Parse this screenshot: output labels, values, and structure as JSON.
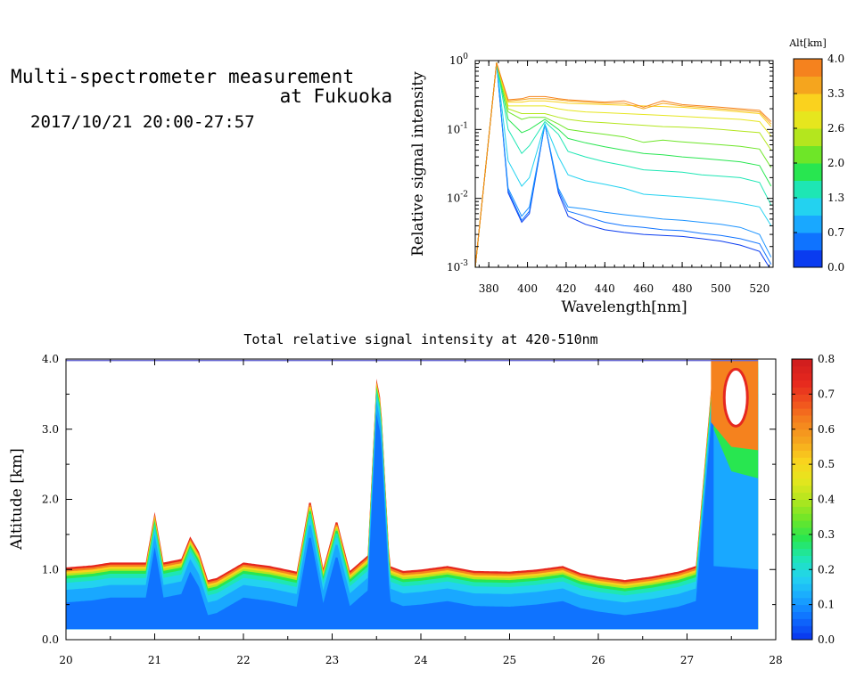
{
  "header": {
    "title_line1": "Multi-spectrometer measurement",
    "title_line2": "at Fukuoka",
    "date_range": "2017/10/21 20:00-27:57"
  },
  "chart_data": [
    {
      "type": "line",
      "xlabel": "Wavelength[nm]",
      "ylabel": "Relative signal intensity",
      "x_ticks": [
        380,
        400,
        420,
        440,
        460,
        480,
        500,
        520
      ],
      "y_scale": "log",
      "y_tick_labels": [
        {
          "base": "10",
          "exp": "0"
        },
        {
          "base": "10",
          "exp": "-1"
        },
        {
          "base": "10",
          "exp": "-2"
        },
        {
          "base": "10",
          "exp": "-3"
        }
      ],
      "xlim": [
        373,
        527
      ],
      "ylim": [
        0.001,
        1
      ],
      "colorbar": {
        "title": "Alt[km]",
        "tick_labels": [
          "4.0",
          "3.3",
          "2.6",
          "2.0",
          "1.3",
          "0.7",
          "0.0"
        ],
        "colors": [
          "#0a3cf0",
          "#0f73ff",
          "#19a8ff",
          "#23d2f0",
          "#1ee6b4",
          "#28e650",
          "#6ee628",
          "#b4e61e",
          "#e6e61e",
          "#fad21e",
          "#f5a51e",
          "#f5821e"
        ]
      },
      "x": [
        373,
        384,
        390,
        397,
        401,
        409,
        416,
        421,
        430,
        440,
        450,
        460,
        470,
        480,
        490,
        500,
        510,
        520,
        526
      ],
      "series": [
        {
          "color": "#0a3cf0",
          "values": [
            0.001,
            0.93,
            0.012,
            0.0045,
            0.006,
            0.12,
            0.012,
            0.0055,
            0.0042,
            0.0035,
            0.0032,
            0.003,
            0.0029,
            0.0028,
            0.0026,
            0.0024,
            0.0021,
            0.0017,
            0.0009
          ]
        },
        {
          "color": "#0f73ff",
          "values": [
            0.001,
            0.93,
            0.013,
            0.0048,
            0.0065,
            0.12,
            0.013,
            0.0065,
            0.0055,
            0.0045,
            0.004,
            0.0038,
            0.0035,
            0.0034,
            0.0031,
            0.0029,
            0.0026,
            0.0022,
            0.0011
          ]
        },
        {
          "color": "#1b93ff",
          "values": [
            0.001,
            0.93,
            0.014,
            0.0055,
            0.0075,
            0.12,
            0.014,
            0.0075,
            0.007,
            0.0063,
            0.0058,
            0.0054,
            0.005,
            0.0048,
            0.0045,
            0.0042,
            0.0038,
            0.003,
            0.0014
          ]
        },
        {
          "color": "#23d2f0",
          "values": [
            0.001,
            0.93,
            0.035,
            0.015,
            0.02,
            0.12,
            0.04,
            0.022,
            0.018,
            0.016,
            0.014,
            0.0115,
            0.011,
            0.0105,
            0.01,
            0.0093,
            0.0085,
            0.0075,
            0.004
          ]
        },
        {
          "color": "#1ee6b4",
          "values": [
            0.001,
            0.93,
            0.1,
            0.045,
            0.058,
            0.13,
            0.085,
            0.048,
            0.04,
            0.034,
            0.03,
            0.026,
            0.025,
            0.024,
            0.022,
            0.021,
            0.02,
            0.017,
            0.008
          ]
        },
        {
          "color": "#28e650",
          "values": [
            0.001,
            0.93,
            0.14,
            0.09,
            0.1,
            0.14,
            0.1,
            0.074,
            0.064,
            0.056,
            0.05,
            0.045,
            0.043,
            0.04,
            0.038,
            0.036,
            0.034,
            0.03,
            0.015
          ]
        },
        {
          "color": "#6ee628",
          "values": [
            0.001,
            0.93,
            0.18,
            0.14,
            0.15,
            0.15,
            0.12,
            0.1,
            0.092,
            0.085,
            0.078,
            0.065,
            0.07,
            0.066,
            0.063,
            0.06,
            0.057,
            0.052,
            0.028
          ]
        },
        {
          "color": "#b4e61e",
          "values": [
            0.001,
            0.93,
            0.2,
            0.17,
            0.17,
            0.17,
            0.15,
            0.14,
            0.13,
            0.125,
            0.12,
            0.115,
            0.11,
            0.108,
            0.105,
            0.1,
            0.095,
            0.09,
            0.05
          ]
        },
        {
          "color": "#e6e61e",
          "values": [
            0.001,
            0.93,
            0.22,
            0.22,
            0.22,
            0.22,
            0.2,
            0.19,
            0.18,
            0.175,
            0.17,
            0.165,
            0.16,
            0.155,
            0.15,
            0.145,
            0.14,
            0.13,
            0.08
          ]
        },
        {
          "color": "#fad21e",
          "values": [
            0.001,
            0.93,
            0.25,
            0.25,
            0.26,
            0.26,
            0.25,
            0.24,
            0.235,
            0.23,
            0.225,
            0.22,
            0.215,
            0.21,
            0.2,
            0.19,
            0.18,
            0.17,
            0.11
          ]
        },
        {
          "color": "#f5a51e",
          "values": [
            0.001,
            0.93,
            0.26,
            0.27,
            0.28,
            0.28,
            0.27,
            0.26,
            0.25,
            0.24,
            0.24,
            0.2,
            0.24,
            0.22,
            0.21,
            0.2,
            0.19,
            0.18,
            0.12
          ]
        },
        {
          "color": "#f5821e",
          "values": [
            0.001,
            0.93,
            0.27,
            0.28,
            0.3,
            0.3,
            0.28,
            0.27,
            0.26,
            0.25,
            0.26,
            0.21,
            0.26,
            0.23,
            0.22,
            0.21,
            0.2,
            0.19,
            0.13
          ]
        }
      ]
    },
    {
      "type": "heatmap",
      "title": "Total relative signal intensity at 420-510nm",
      "ylabel": "Altitude [km]",
      "x_ticks": [
        20,
        21,
        22,
        23,
        24,
        25,
        26,
        27,
        28
      ],
      "y_ticks": [
        "0.0",
        "1.0",
        "2.0",
        "3.0",
        "4.0"
      ],
      "xlim": [
        20,
        28
      ],
      "ylim": [
        0,
        4
      ],
      "colorbar": {
        "tick_labels": [
          "0.8",
          "0.7",
          "0.6",
          "0.5",
          "0.4",
          "0.3",
          "0.2",
          "0.1",
          "0.0"
        ],
        "range": [
          0,
          0.8
        ],
        "stops": [
          "#0a3cf0",
          "#0f73ff",
          "#19a8ff",
          "#23d2f0",
          "#1ee6b4",
          "#28e650",
          "#6ee628",
          "#b4e61e",
          "#e6e61e",
          "#fad21e",
          "#f5a51e",
          "#f5821e",
          "#f0501e",
          "#e6281e",
          "#d21e1e"
        ]
      },
      "data_start_altitude": 0.15,
      "cloud_base": {
        "time": [
          20.0,
          20.3,
          20.5,
          20.9,
          21.0,
          21.1,
          21.3,
          21.4,
          21.5,
          21.6,
          21.7,
          22.0,
          22.3,
          22.6,
          22.75,
          22.9,
          23.05,
          23.2,
          23.4,
          23.5,
          23.55,
          23.65,
          23.8,
          24.0,
          24.3,
          24.6,
          25.0,
          25.3,
          25.6,
          25.8,
          26.0,
          26.3,
          26.6,
          26.9,
          27.1,
          27.3,
          27.5,
          27.8
        ],
        "altitude": [
          1.03,
          1.06,
          1.1,
          1.1,
          1.82,
          1.1,
          1.15,
          1.47,
          1.25,
          0.85,
          0.88,
          1.1,
          1.05,
          0.97,
          2.02,
          1.02,
          1.72,
          0.98,
          1.2,
          3.72,
          3.4,
          1.05,
          0.98,
          1.0,
          1.05,
          0.98,
          0.97,
          1.0,
          1.05,
          0.95,
          0.9,
          0.85,
          0.9,
          0.97,
          1.05,
          4.0,
          4.0,
          4.0
        ]
      }
    }
  ]
}
